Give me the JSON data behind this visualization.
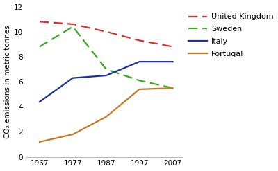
{
  "years": [
    1967,
    1977,
    1987,
    1997,
    2007
  ],
  "united_kingdom": [
    10.8,
    10.6,
    10.0,
    9.3,
    8.8
  ],
  "sweden": [
    8.8,
    10.4,
    7.0,
    6.1,
    5.5
  ],
  "italy": [
    4.4,
    6.3,
    6.5,
    7.6,
    7.6
  ],
  "portugal": [
    1.2,
    1.8,
    3.2,
    5.4,
    5.5
  ],
  "colors": {
    "united_kingdom": "#d93030",
    "sweden": "#3aaa20",
    "italy": "#1a2fa0",
    "portugal": "#c87820"
  },
  "legend_labels": [
    "United Kingdom",
    "Sweden",
    "Italy",
    "Portugal"
  ],
  "ylabel": "CO₂ emissions in metric tonnes",
  "ylim": [
    0,
    12
  ],
  "yticks": [
    0,
    2,
    4,
    6,
    8,
    10,
    12
  ],
  "background_color": "#ffffff",
  "axis_fontsize": 7.5,
  "legend_fontsize": 8.0,
  "linewidth": 1.6
}
